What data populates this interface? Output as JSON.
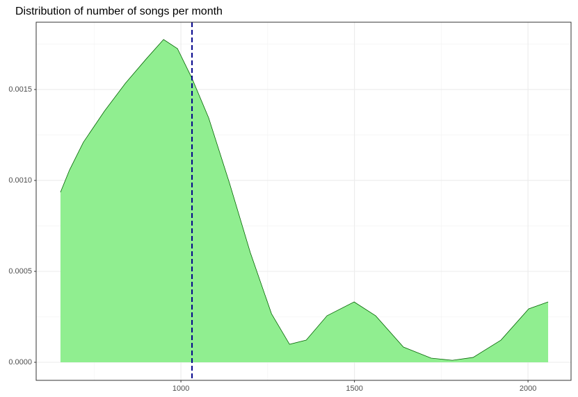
{
  "chart_data": {
    "type": "area",
    "title": "Distribution of number of songs per month",
    "x": [
      653,
      679,
      719,
      780,
      840,
      900,
      950,
      990,
      1032,
      1080,
      1140,
      1200,
      1261,
      1313,
      1361,
      1421,
      1499,
      1561,
      1641,
      1721,
      1782,
      1842,
      1922,
      2002,
      2058
    ],
    "series": [
      {
        "color": "#90ee90",
        "line_color": "#006400",
        "values": [
          0.000935,
          0.001057,
          0.00121,
          0.001382,
          0.001534,
          0.001668,
          0.001775,
          0.001725,
          0.001561,
          0.001344,
          0.000985,
          0.000603,
          0.000267,
          9.9e-05,
          0.000122,
          0.000256,
          0.000332,
          0.000256,
          8.4e-05,
          2.3e-05,
          1.1e-05,
          2.7e-05,
          0.000122,
          0.000294,
          0.000332
        ]
      }
    ],
    "vline": {
      "x": 1032,
      "color": "#00008b"
    },
    "xlim": [
      583,
      2124
    ],
    "ylim": [
      -9.92e-05,
      0.00187
    ],
    "xticks": [
      1000,
      1500,
      2000
    ],
    "yticks": [
      {
        "value": 0,
        "label": "0.0000"
      },
      {
        "value": 0.0005,
        "label": "0.0005"
      },
      {
        "value": 0.001,
        "label": "0.0010"
      },
      {
        "value": 0.0015,
        "label": "0.0015"
      }
    ],
    "x_minor_grid": [
      750,
      1250,
      1750
    ],
    "y_minor_grid": [
      0.00025,
      0.00075,
      0.00125,
      0.00175
    ],
    "grid": true
  }
}
